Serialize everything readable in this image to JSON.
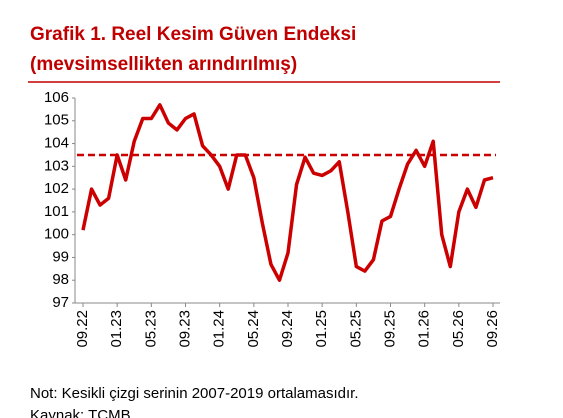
{
  "chart_data": {
    "type": "line",
    "title": [
      "Grafik 1. Reel Kesim Güven Endeksi",
      "(mevsimsellikten arındırılmış)"
    ],
    "categories": [
      "09.22",
      null,
      null,
      null,
      "01.23",
      null,
      null,
      null,
      "05.23",
      null,
      null,
      null,
      "09.23",
      null,
      null,
      null,
      "01.24",
      null,
      null,
      null,
      "05.24",
      null,
      null,
      null,
      "09.24",
      null,
      null,
      null,
      "01.25",
      null,
      null,
      null,
      "05.25",
      null,
      null,
      null,
      "09.25",
      null,
      null,
      null,
      "01.26",
      null,
      null,
      null,
      "05.26",
      null,
      null,
      null,
      "09.26"
    ],
    "values": [
      100.2,
      102.0,
      101.3,
      101.6,
      103.5,
      102.4,
      104.1,
      105.1,
      105.1,
      105.7,
      104.9,
      104.6,
      105.1,
      105.3,
      103.9,
      103.5,
      103.0,
      102.0,
      103.5,
      103.5,
      102.5,
      100.5,
      98.7,
      98.0,
      99.2,
      102.2,
      103.4,
      102.7,
      102.6,
      102.8,
      103.2,
      101.0,
      98.6,
      98.4,
      98.9,
      100.6,
      100.8,
      102.0,
      103.1,
      103.7,
      103.0,
      104.1,
      100.0,
      98.6,
      101.0,
      102.0,
      101.2,
      102.4,
      102.5
    ],
    "color": "#cc0000",
    "average": 103.5,
    "average_style": "dashed",
    "ylim": [
      97,
      106
    ],
    "yticks": [
      97,
      98,
      99,
      100,
      101,
      102,
      103,
      104,
      105,
      106
    ],
    "grid": false,
    "notes": [
      "Not: Kesikli çizgi serinin 2007-2019 ortalamasıdır.",
      "Kaynak: TCMB"
    ]
  }
}
